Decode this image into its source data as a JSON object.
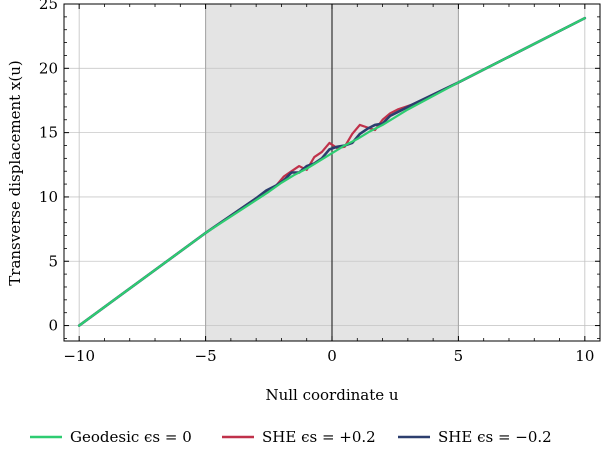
{
  "chart_data": {
    "type": "line",
    "xlabel": "Null coordinate u",
    "ylabel": "Transverse displacement x(u)",
    "xlim": [
      -10.6,
      10.6
    ],
    "ylim": [
      -1.2,
      25
    ],
    "xticks": [
      -10,
      -5,
      0,
      5,
      10
    ],
    "xtick_labels": [
      "−10",
      "−5",
      "0",
      "5",
      "10"
    ],
    "yticks": [
      0,
      5,
      10,
      15,
      20,
      25
    ],
    "ytick_labels": [
      "0",
      "5",
      "10",
      "15",
      "20",
      "25"
    ],
    "grid": true,
    "shaded_region": {
      "x": [
        -5,
        5
      ],
      "color": "#e4e4e4"
    },
    "vertical_line_x": 0,
    "legend_position": "bottom",
    "series": [
      {
        "name": "Geodesic ϵs = 0",
        "color": "#2ecc71",
        "x": [
          -10,
          -5,
          -2.5,
          -2.0,
          -1.5,
          -1.0,
          -0.5,
          0.0,
          0.5,
          1.0,
          1.5,
          2.0,
          2.5,
          3.0,
          5.0,
          10.0
        ],
        "y": [
          0.0,
          7.2,
          10.4,
          11.1,
          11.7,
          12.2,
          12.8,
          13.4,
          14.0,
          14.5,
          15.1,
          15.6,
          16.2,
          16.8,
          18.9,
          23.9
        ]
      },
      {
        "name": "SHE ϵs = +0.2",
        "color": "#c0314a",
        "x": [
          -10,
          -5,
          -3.0,
          -2.6,
          -2.2,
          -1.9,
          -1.6,
          -1.3,
          -1.0,
          -0.7,
          -0.4,
          -0.1,
          0.2,
          0.5,
          0.8,
          1.1,
          1.4,
          1.7,
          2.0,
          2.3,
          2.6,
          2.9,
          3.2,
          5.0,
          10.0
        ],
        "y": [
          0.0,
          7.2,
          9.9,
          10.4,
          10.9,
          11.6,
          12.0,
          12.4,
          12.1,
          13.1,
          13.5,
          14.2,
          13.8,
          13.9,
          14.9,
          15.6,
          15.4,
          15.2,
          16.0,
          16.5,
          16.8,
          17.0,
          17.2,
          18.9,
          23.9
        ]
      },
      {
        "name": "SHE ϵs = −0.2",
        "color": "#2c3e6e",
        "x": [
          -10,
          -5,
          -3.0,
          -2.6,
          -2.2,
          -1.9,
          -1.6,
          -1.3,
          -1.0,
          -0.7,
          -0.4,
          -0.1,
          0.2,
          0.5,
          0.8,
          1.1,
          1.4,
          1.7,
          2.0,
          2.3,
          2.6,
          2.9,
          3.2,
          5.0,
          10.0
        ],
        "y": [
          0.0,
          7.2,
          9.9,
          10.5,
          10.9,
          11.3,
          11.9,
          11.9,
          12.4,
          12.6,
          13.0,
          13.7,
          13.9,
          14.0,
          14.2,
          14.9,
          15.3,
          15.6,
          15.7,
          16.3,
          16.6,
          16.9,
          17.2,
          18.9,
          23.9
        ]
      }
    ]
  }
}
